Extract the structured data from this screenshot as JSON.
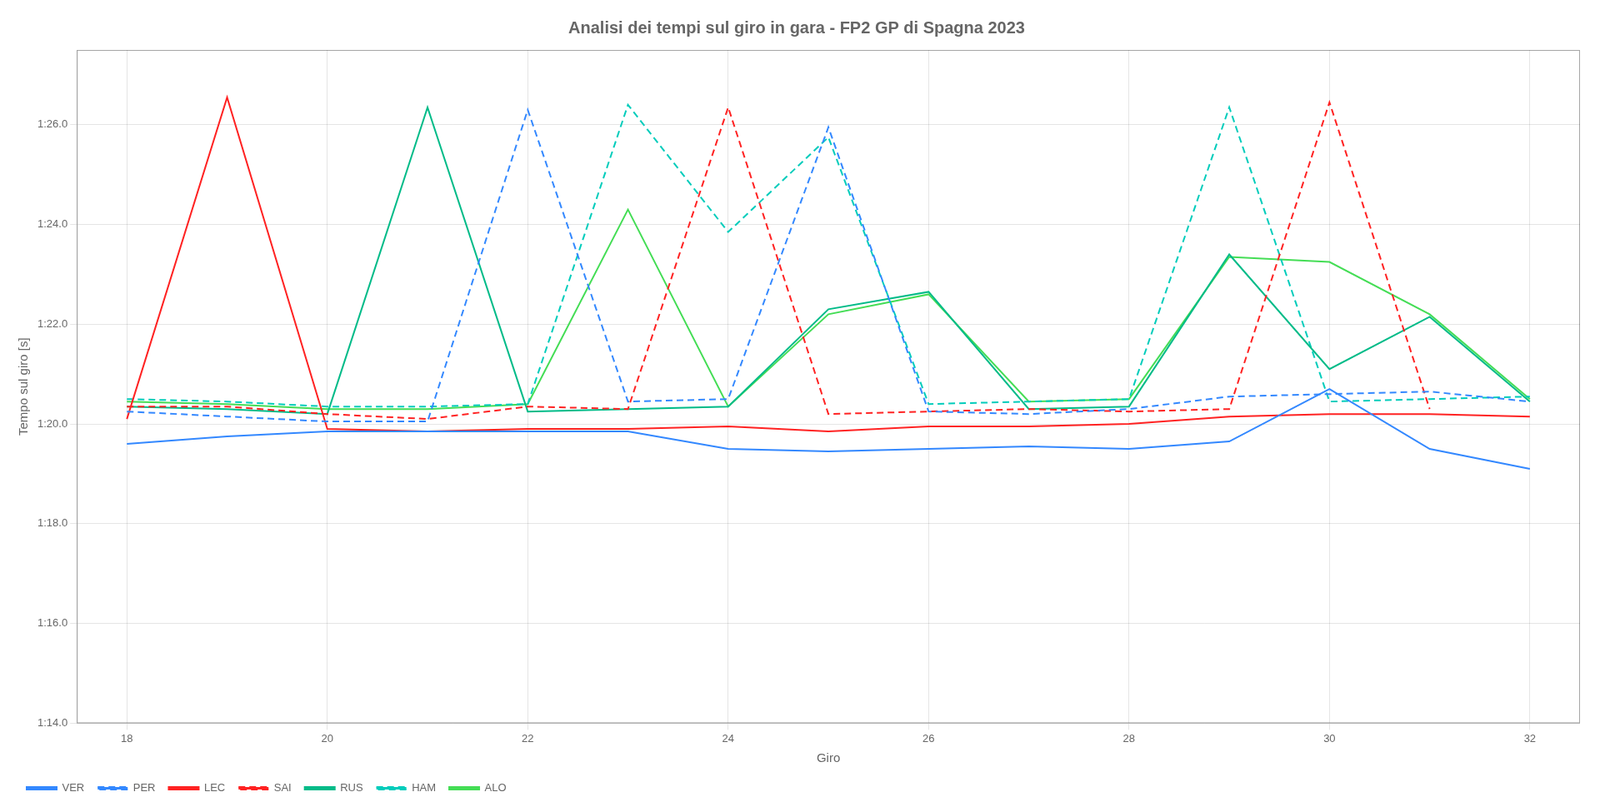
{
  "chart_data": {
    "type": "line",
    "title": "Analisi dei tempi sul giro in gara - FP2 GP di Spagna 2023",
    "x_label": "Giro",
    "y_label": "Tempo sul giro [s]",
    "x": [
      18,
      19,
      20,
      21,
      22,
      23,
      24,
      25,
      26,
      27,
      28,
      29,
      30,
      31,
      32
    ],
    "series": [
      {
        "name": "VER",
        "color": "#3388ff",
        "line_style": "solid",
        "values": [
          79.6,
          79.75,
          79.85,
          79.85,
          79.85,
          79.85,
          79.5,
          79.45,
          79.5,
          79.55,
          79.5,
          79.65,
          80.7,
          79.5,
          79.1
        ]
      },
      {
        "name": "PER",
        "color": "#3388ff",
        "line_style": "dashed",
        "values": [
          80.25,
          80.15,
          80.05,
          80.05,
          86.3,
          80.45,
          80.5,
          85.95,
          80.25,
          80.2,
          80.3,
          80.55,
          80.6,
          80.65,
          80.45
        ]
      },
      {
        "name": "LEC",
        "color": "#ff2222",
        "line_style": "solid",
        "values": [
          80.1,
          86.55,
          79.9,
          79.85,
          79.9,
          79.9,
          79.95,
          79.85,
          79.95,
          79.95,
          80.0,
          80.15,
          80.2,
          80.2,
          80.15
        ]
      },
      {
        "name": "SAI",
        "color": "#ff2222",
        "line_style": "dashed",
        "values": [
          80.35,
          80.35,
          80.2,
          80.1,
          80.35,
          80.3,
          86.35,
          80.2,
          80.25,
          80.3,
          80.25,
          80.3,
          86.45,
          80.3,
          null
        ]
      },
      {
        "name": "RUS",
        "color": "#00bb88",
        "line_style": "solid",
        "values": [
          80.35,
          80.3,
          80.2,
          86.35,
          80.25,
          80.3,
          80.35,
          82.3,
          82.65,
          80.3,
          80.35,
          83.4,
          81.1,
          82.15,
          80.45
        ]
      },
      {
        "name": "HAM",
        "color": "#00ccbb",
        "line_style": "dashed",
        "values": [
          80.5,
          80.45,
          80.35,
          80.35,
          80.4,
          86.4,
          83.85,
          85.75,
          80.4,
          80.45,
          80.5,
          86.35,
          80.45,
          80.5,
          80.55
        ]
      },
      {
        "name": "ALO",
        "color": "#44dd55",
        "line_style": "solid",
        "values": [
          80.45,
          80.4,
          80.3,
          80.3,
          80.4,
          84.3,
          80.35,
          82.2,
          82.6,
          80.45,
          80.5,
          83.35,
          83.25,
          82.2,
          80.5
        ]
      }
    ],
    "xlim": [
      17.5,
      32.5
    ],
    "xticks": [
      18,
      20,
      22,
      24,
      26,
      28,
      30,
      32
    ],
    "ylim": [
      74.0,
      87.5
    ],
    "yticks": [
      {
        "value": 74.0,
        "label": "1:14.0"
      },
      {
        "value": 76.0,
        "label": "1:16.0"
      },
      {
        "value": 78.0,
        "label": "1:18.0"
      },
      {
        "value": 80.0,
        "label": "1:20.0"
      },
      {
        "value": 82.0,
        "label": "1:22.0"
      },
      {
        "value": 84.0,
        "label": "1:24.0"
      },
      {
        "value": 86.0,
        "label": "1:26.0"
      }
    ],
    "grid": true,
    "legend": "lower left"
  }
}
